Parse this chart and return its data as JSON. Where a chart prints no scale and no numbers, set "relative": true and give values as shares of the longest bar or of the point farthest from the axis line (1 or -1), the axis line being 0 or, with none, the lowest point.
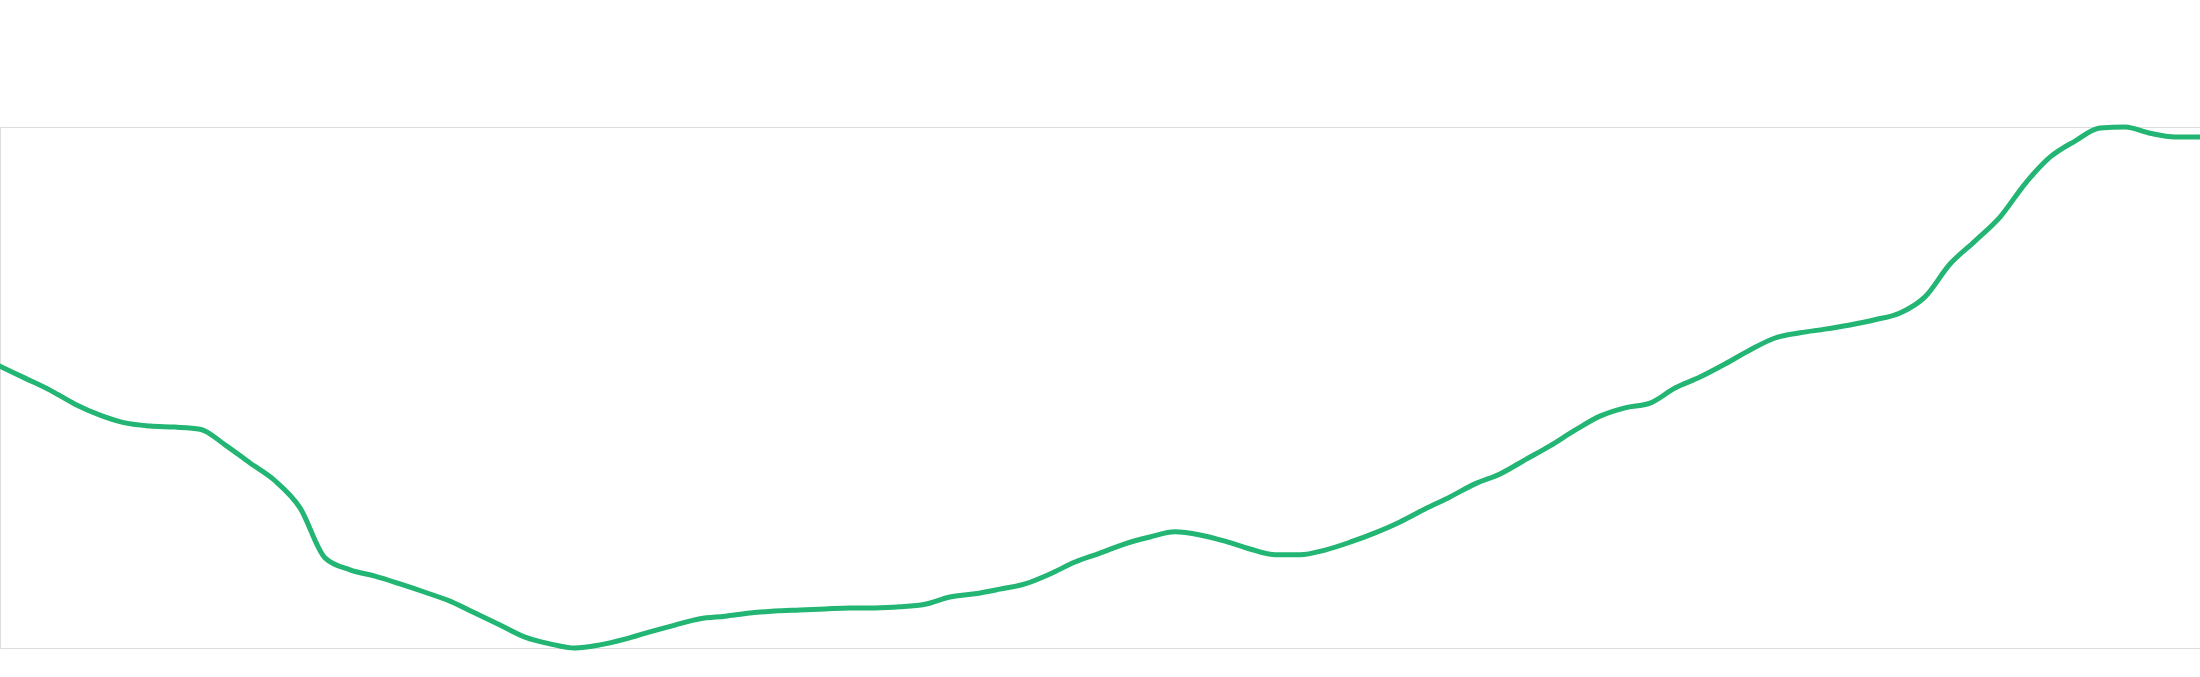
{
  "chart_data": {
    "type": "line",
    "relative": true,
    "categories": [
      null,
      null,
      null,
      null,
      null,
      null,
      null,
      null,
      null,
      null,
      null,
      null,
      null,
      null,
      null,
      null,
      null,
      null,
      null,
      null,
      null,
      null,
      null,
      null,
      null,
      null,
      null,
      null,
      null,
      null,
      null,
      null,
      null,
      null,
      null,
      null,
      null,
      null,
      null,
      null,
      null,
      null,
      null,
      null,
      null,
      null,
      null,
      null,
      null,
      null,
      null,
      null,
      null,
      null,
      null,
      null,
      null,
      null,
      null,
      null,
      null,
      null,
      null,
      null,
      null,
      null,
      null,
      null,
      null,
      null,
      null,
      null,
      null,
      null,
      null,
      null,
      null,
      null,
      null,
      null,
      null,
      null,
      null,
      null,
      null,
      null,
      null,
      null,
      null
    ],
    "series": [
      {
        "color": "#22b573",
        "values": [
          0.541,
          0.518,
          0.495,
          0.468,
          0.447,
          0.432,
          0.426,
          0.424,
          0.42,
          0.39,
          0.355,
          0.321,
          0.269,
          0.173,
          0.15,
          0.138,
          0.123,
          0.107,
          0.09,
          0.067,
          0.044,
          0.021,
          0.008,
          0,
          0.006,
          0.017,
          0.031,
          0.044,
          0.056,
          0.061,
          0.067,
          0.071,
          0.073,
          0.075,
          0.077,
          0.077,
          0.079,
          0.084,
          0.098,
          0.104,
          0.113,
          0.123,
          0.142,
          0.165,
          0.182,
          0.2,
          0.213,
          0.223,
          0.217,
          0.205,
          0.19,
          0.179,
          0.179,
          0.188,
          0.203,
          0.221,
          0.242,
          0.267,
          0.29,
          0.315,
          0.334,
          0.361,
          0.388,
          0.418,
          0.445,
          0.461,
          0.47,
          0.499,
          0.52,
          0.545,
          0.572,
          0.595,
          0.605,
          0.612,
          0.62,
          0.63,
          0.643,
          0.674,
          0.737,
          0.781,
          0.827,
          0.891,
          0.942,
          0.973,
          0.998,
          1,
          0.988,
          0.981,
          0.981
        ]
      }
    ]
  }
}
